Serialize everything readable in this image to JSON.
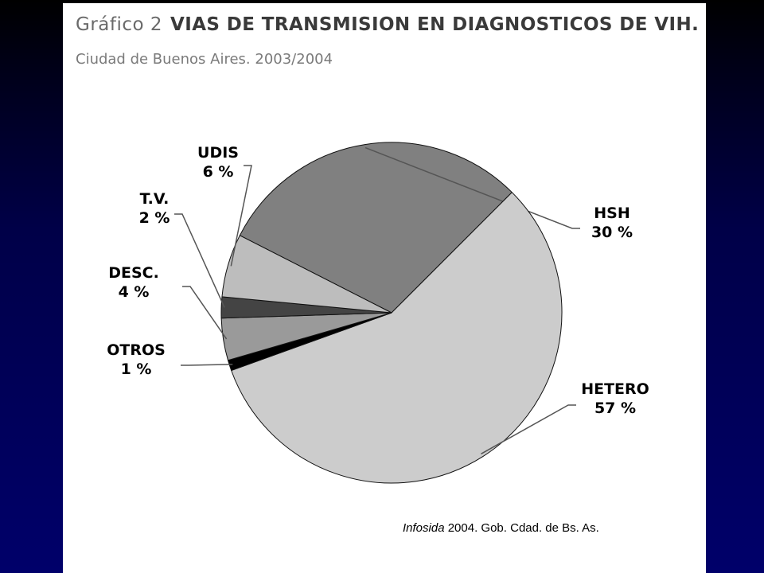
{
  "header": {
    "prefix": "Gráfico 2",
    "title": "VIAS DE TRANSMISION EN DIAGNOSTICOS DE  VIH.",
    "subtitle": "Ciudad de Buenos Aires. 2003/2004"
  },
  "source": {
    "italic": "Infosida",
    "rest": " 2004. Gob. Cdad. de Bs. As."
  },
  "chart_data": {
    "type": "pie",
    "title": "VIAS DE TRANSMISION EN DIAGNOSTICOS DE  VIH.",
    "subtitle": "Ciudad de Buenos Aires. 2003/2004",
    "slices": [
      {
        "name": "HSH",
        "value": 30,
        "label": "30 %",
        "color": "#808080"
      },
      {
        "name": "HETERO",
        "value": 57,
        "label": "57 %",
        "color": "#cccccc"
      },
      {
        "name": "OTROS",
        "value": 1,
        "label": "1 %",
        "color": "#000000"
      },
      {
        "name": "DESC.",
        "value": 4,
        "label": "4 %",
        "color": "#9a9a9a"
      },
      {
        "name": "T.V.",
        "value": 2,
        "label": "2 %",
        "color": "#444444"
      },
      {
        "name": "UDIS",
        "value": 6,
        "label": "6 %",
        "color": "#bdbdbd"
      }
    ]
  }
}
